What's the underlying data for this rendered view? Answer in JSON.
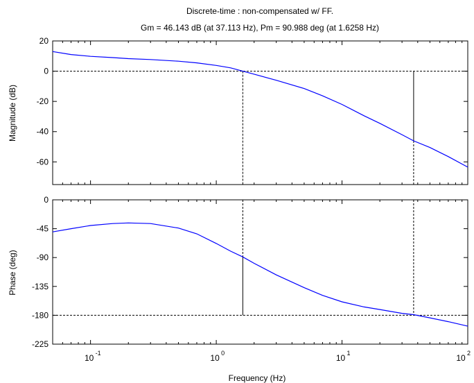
{
  "chart_data": {
    "type": "line",
    "title": "Discrete-time : non-compensated w/ FF.",
    "subtitle": "Gm = 46.143 dB (at 37.113 Hz),  Pm = 90.988 deg (at 1.6258 Hz)",
    "xlabel": "Frequency (Hz)",
    "x_scale": "log",
    "xlim": [
      0.05,
      100
    ],
    "x_tick_labels": [
      {
        "value": 0.1,
        "base": "10",
        "exp": "-1"
      },
      {
        "value": 1,
        "base": "10",
        "exp": "0"
      },
      {
        "value": 10,
        "base": "10",
        "exp": "1"
      },
      {
        "value": 100,
        "base": "10",
        "exp": "2"
      }
    ],
    "gain_crossover_hz": 1.6258,
    "phase_crossover_hz": 37.113,
    "line_color": "#0000ff",
    "panels": [
      {
        "id": "magnitude",
        "ylabel": "Magnitude (dB)",
        "ylim": [
          -75,
          20
        ],
        "yticks": [
          20,
          0,
          -20,
          -40,
          -60
        ],
        "reference_line": 0,
        "series": [
          {
            "x": [
              0.05,
              0.07,
              0.1,
              0.15,
              0.2,
              0.3,
              0.5,
              0.7,
              1.0,
              1.3,
              1.6258,
              2.0,
              3.0,
              5.0,
              7.0,
              10.0,
              15.0,
              20.0,
              30.0,
              37.113,
              50.0,
              70.0,
              100.0
            ],
            "y": [
              13,
              11,
              9.8,
              9,
              8.3,
              7.7,
              6.6,
              5.5,
              3.8,
              2.2,
              0,
              -2,
              -6,
              -11.5,
              -16.3,
              -22,
              -29.5,
              -34.5,
              -42,
              -46.1,
              -50.5,
              -56.5,
              -63.5
            ]
          }
        ],
        "markers": [
          {
            "x": 1.6258,
            "y_from": 0,
            "y_to": -75,
            "style": "dashed"
          },
          {
            "x": 37.113,
            "y_from": 0,
            "y_to": -46.1,
            "style": "solid"
          },
          {
            "x": 37.113,
            "y_from": -46.1,
            "y_to": -75,
            "style": "dashed"
          }
        ]
      },
      {
        "id": "phase",
        "ylabel": "Phase (deg)",
        "ylim": [
          -225,
          0
        ],
        "yticks": [
          0,
          -45,
          -90,
          -135,
          -180,
          -225
        ],
        "reference_line": -180,
        "series": [
          {
            "x": [
              0.05,
              0.07,
              0.1,
              0.15,
              0.2,
              0.3,
              0.5,
              0.7,
              1.0,
              1.3,
              1.6258,
              2.0,
              3.0,
              5.0,
              7.0,
              10.0,
              15.0,
              20.0,
              30.0,
              37.113,
              50.0,
              70.0,
              100.0
            ],
            "y": [
              -50,
              -45,
              -40,
              -37,
              -36,
              -37,
              -44,
              -53,
              -68,
              -80,
              -89,
              -99,
              -117,
              -137,
              -149,
              -159,
              -167,
              -171,
              -177,
              -179,
              -184,
              -190,
              -197
            ]
          }
        ],
        "markers": [
          {
            "x": 1.6258,
            "y_from": 0,
            "y_to": -89,
            "style": "dashed"
          },
          {
            "x": 1.6258,
            "y_from": -89,
            "y_to": -180,
            "style": "solid"
          },
          {
            "x": 37.113,
            "y_from": 0,
            "y_to": -180,
            "style": "dashed"
          }
        ]
      }
    ],
    "grid": false,
    "legend": "none"
  }
}
